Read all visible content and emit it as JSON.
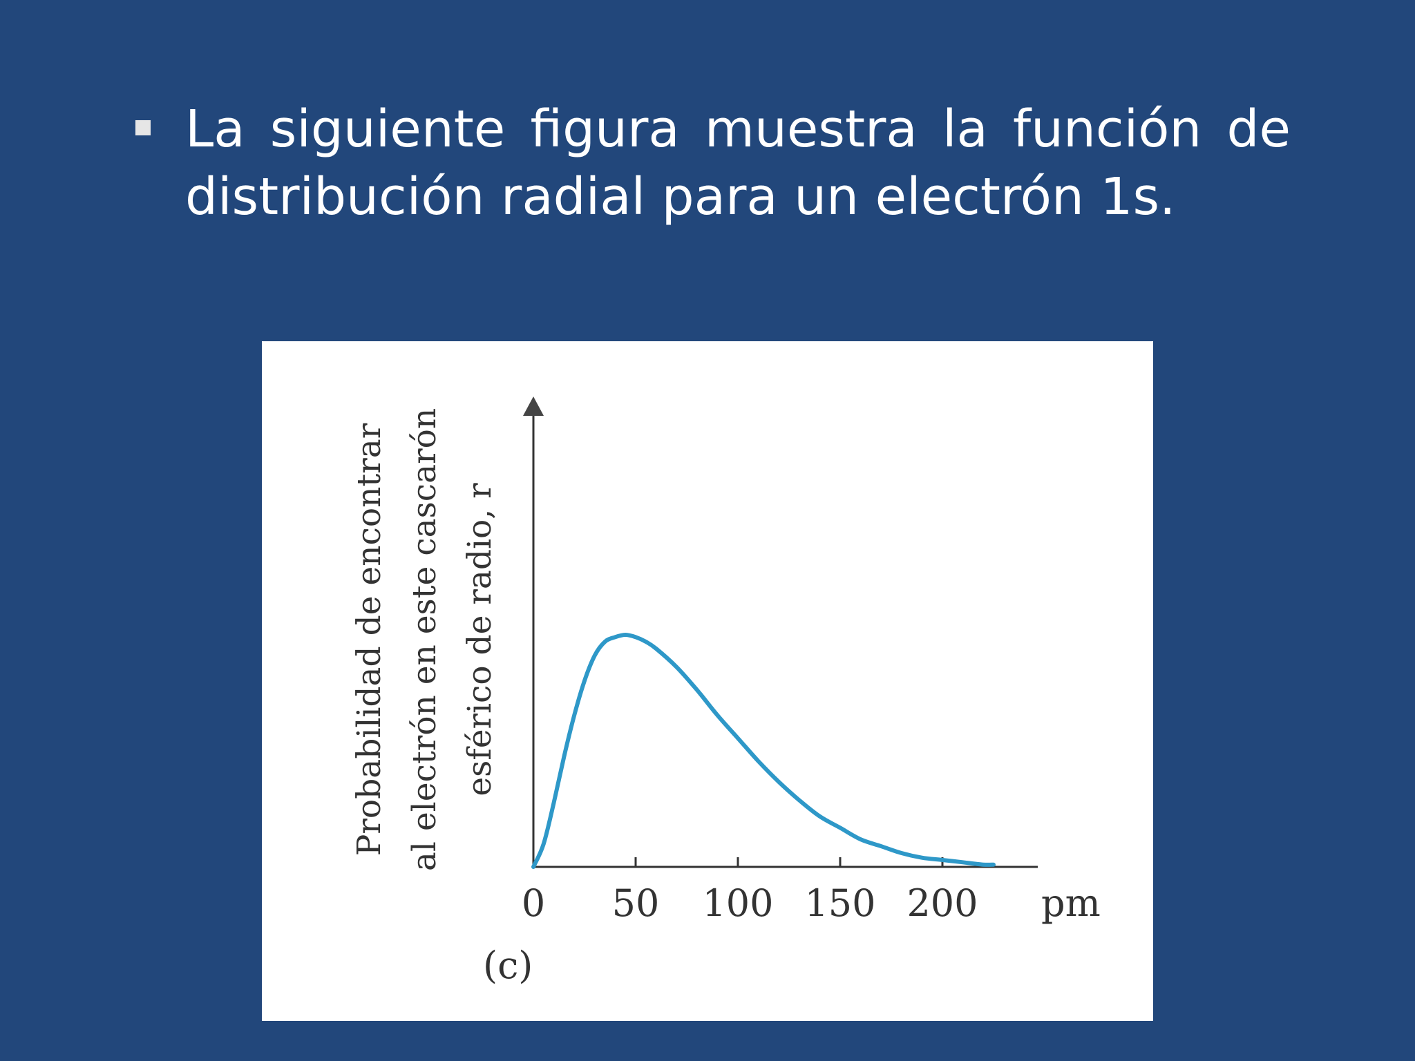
{
  "slide": {
    "bullet_line_1": "La siguiente figura muestra la función de",
    "bullet_line_2": "distribución radial para un electrón 1s."
  },
  "chart_data": {
    "type": "line",
    "title": "",
    "xlabel": "",
    "x_unit": "pm",
    "ylabel_lines": [
      "Probabilidad de encontrar",
      "al electrón en este cascarón",
      "esférico de radio, r"
    ],
    "panel_label": "(c)",
    "xlim": [
      0,
      240
    ],
    "ylim": [
      0,
      1.45
    ],
    "x_ticks": [
      0,
      50,
      100,
      150,
      200
    ],
    "x_tick_labels": [
      "0",
      "50",
      "100",
      "150",
      "200"
    ],
    "series": [
      {
        "color": "#2e98c8",
        "x": [
          0,
          5,
          10,
          15,
          20,
          25,
          30,
          35,
          40,
          45,
          50,
          55,
          60,
          70,
          80,
          90,
          100,
          110,
          120,
          130,
          140,
          150,
          160,
          170,
          180,
          190,
          200,
          210,
          220,
          225
        ],
        "y": [
          0,
          0.1,
          0.28,
          0.48,
          0.66,
          0.81,
          0.92,
          0.98,
          1.0,
          1.01,
          1.0,
          0.98,
          0.95,
          0.87,
          0.77,
          0.66,
          0.56,
          0.46,
          0.37,
          0.29,
          0.22,
          0.17,
          0.12,
          0.09,
          0.06,
          0.04,
          0.03,
          0.02,
          0.01,
          0.01
        ]
      }
    ],
    "grid": false,
    "legend": "none",
    "axis_color": "#333333"
  }
}
